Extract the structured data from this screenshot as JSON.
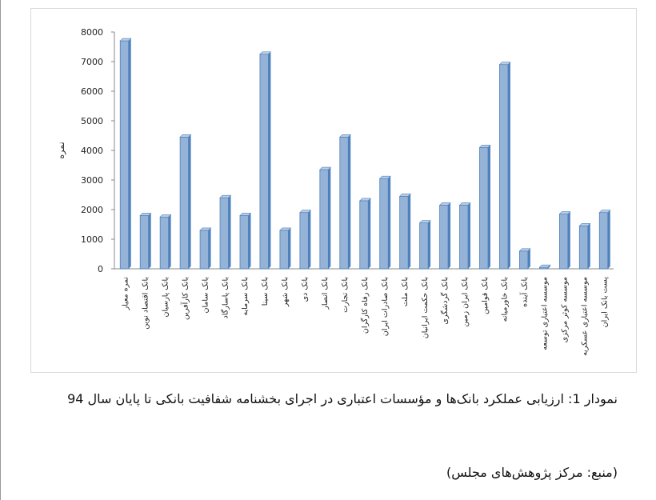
{
  "chart_data": {
    "type": "bar",
    "ylabel": "نمره",
    "categories": [
      "نمره معیار",
      "بانک اقتصاد نوین",
      "بانک پارسیان",
      "بانک کارآفرین",
      "بانک سامان",
      "بانک پاسارگاد",
      "بانک سرمایه",
      "بانک سینا",
      "بانک شهر",
      "بانک دی",
      "بانک انصار",
      "بانک تجارت",
      "بانک رفاه کارگران",
      "بانک صادرات ایران",
      "بانک ملت",
      "بانک حکمت ایرانیان",
      "بانک گردشگری",
      "بانک ایران زمین",
      "بانک قوامین",
      "بانک خاورمیانه",
      "بانک آینده",
      "موسسه اعتباری توسعه",
      "موسسه کوثر مرکزی",
      "موسسه اعتباری عسکریه",
      "پست بانک ایران"
    ],
    "values": [
      7700,
      1800,
      1750,
      4450,
      1300,
      2400,
      1800,
      7250,
      1300,
      1900,
      3350,
      4450,
      2300,
      3050,
      2450,
      1550,
      2150,
      2150,
      4100,
      6900,
      600,
      50,
      1850,
      1450,
      1900
    ],
    "color": "#95b3d7",
    "ylim": [
      0,
      8000
    ],
    "yticks": [
      0,
      1000,
      2000,
      3000,
      4000,
      5000,
      6000,
      7000,
      8000
    ]
  },
  "caption": "نمودار 1: ارزیابی عملکرد بانک‌ها و مؤسسات اعتباری در اجرای بخشنامه شفافیت بانکی تا پایان سال 94",
  "source": "(منبع: مرکز پژوهش‌های مجلس)"
}
